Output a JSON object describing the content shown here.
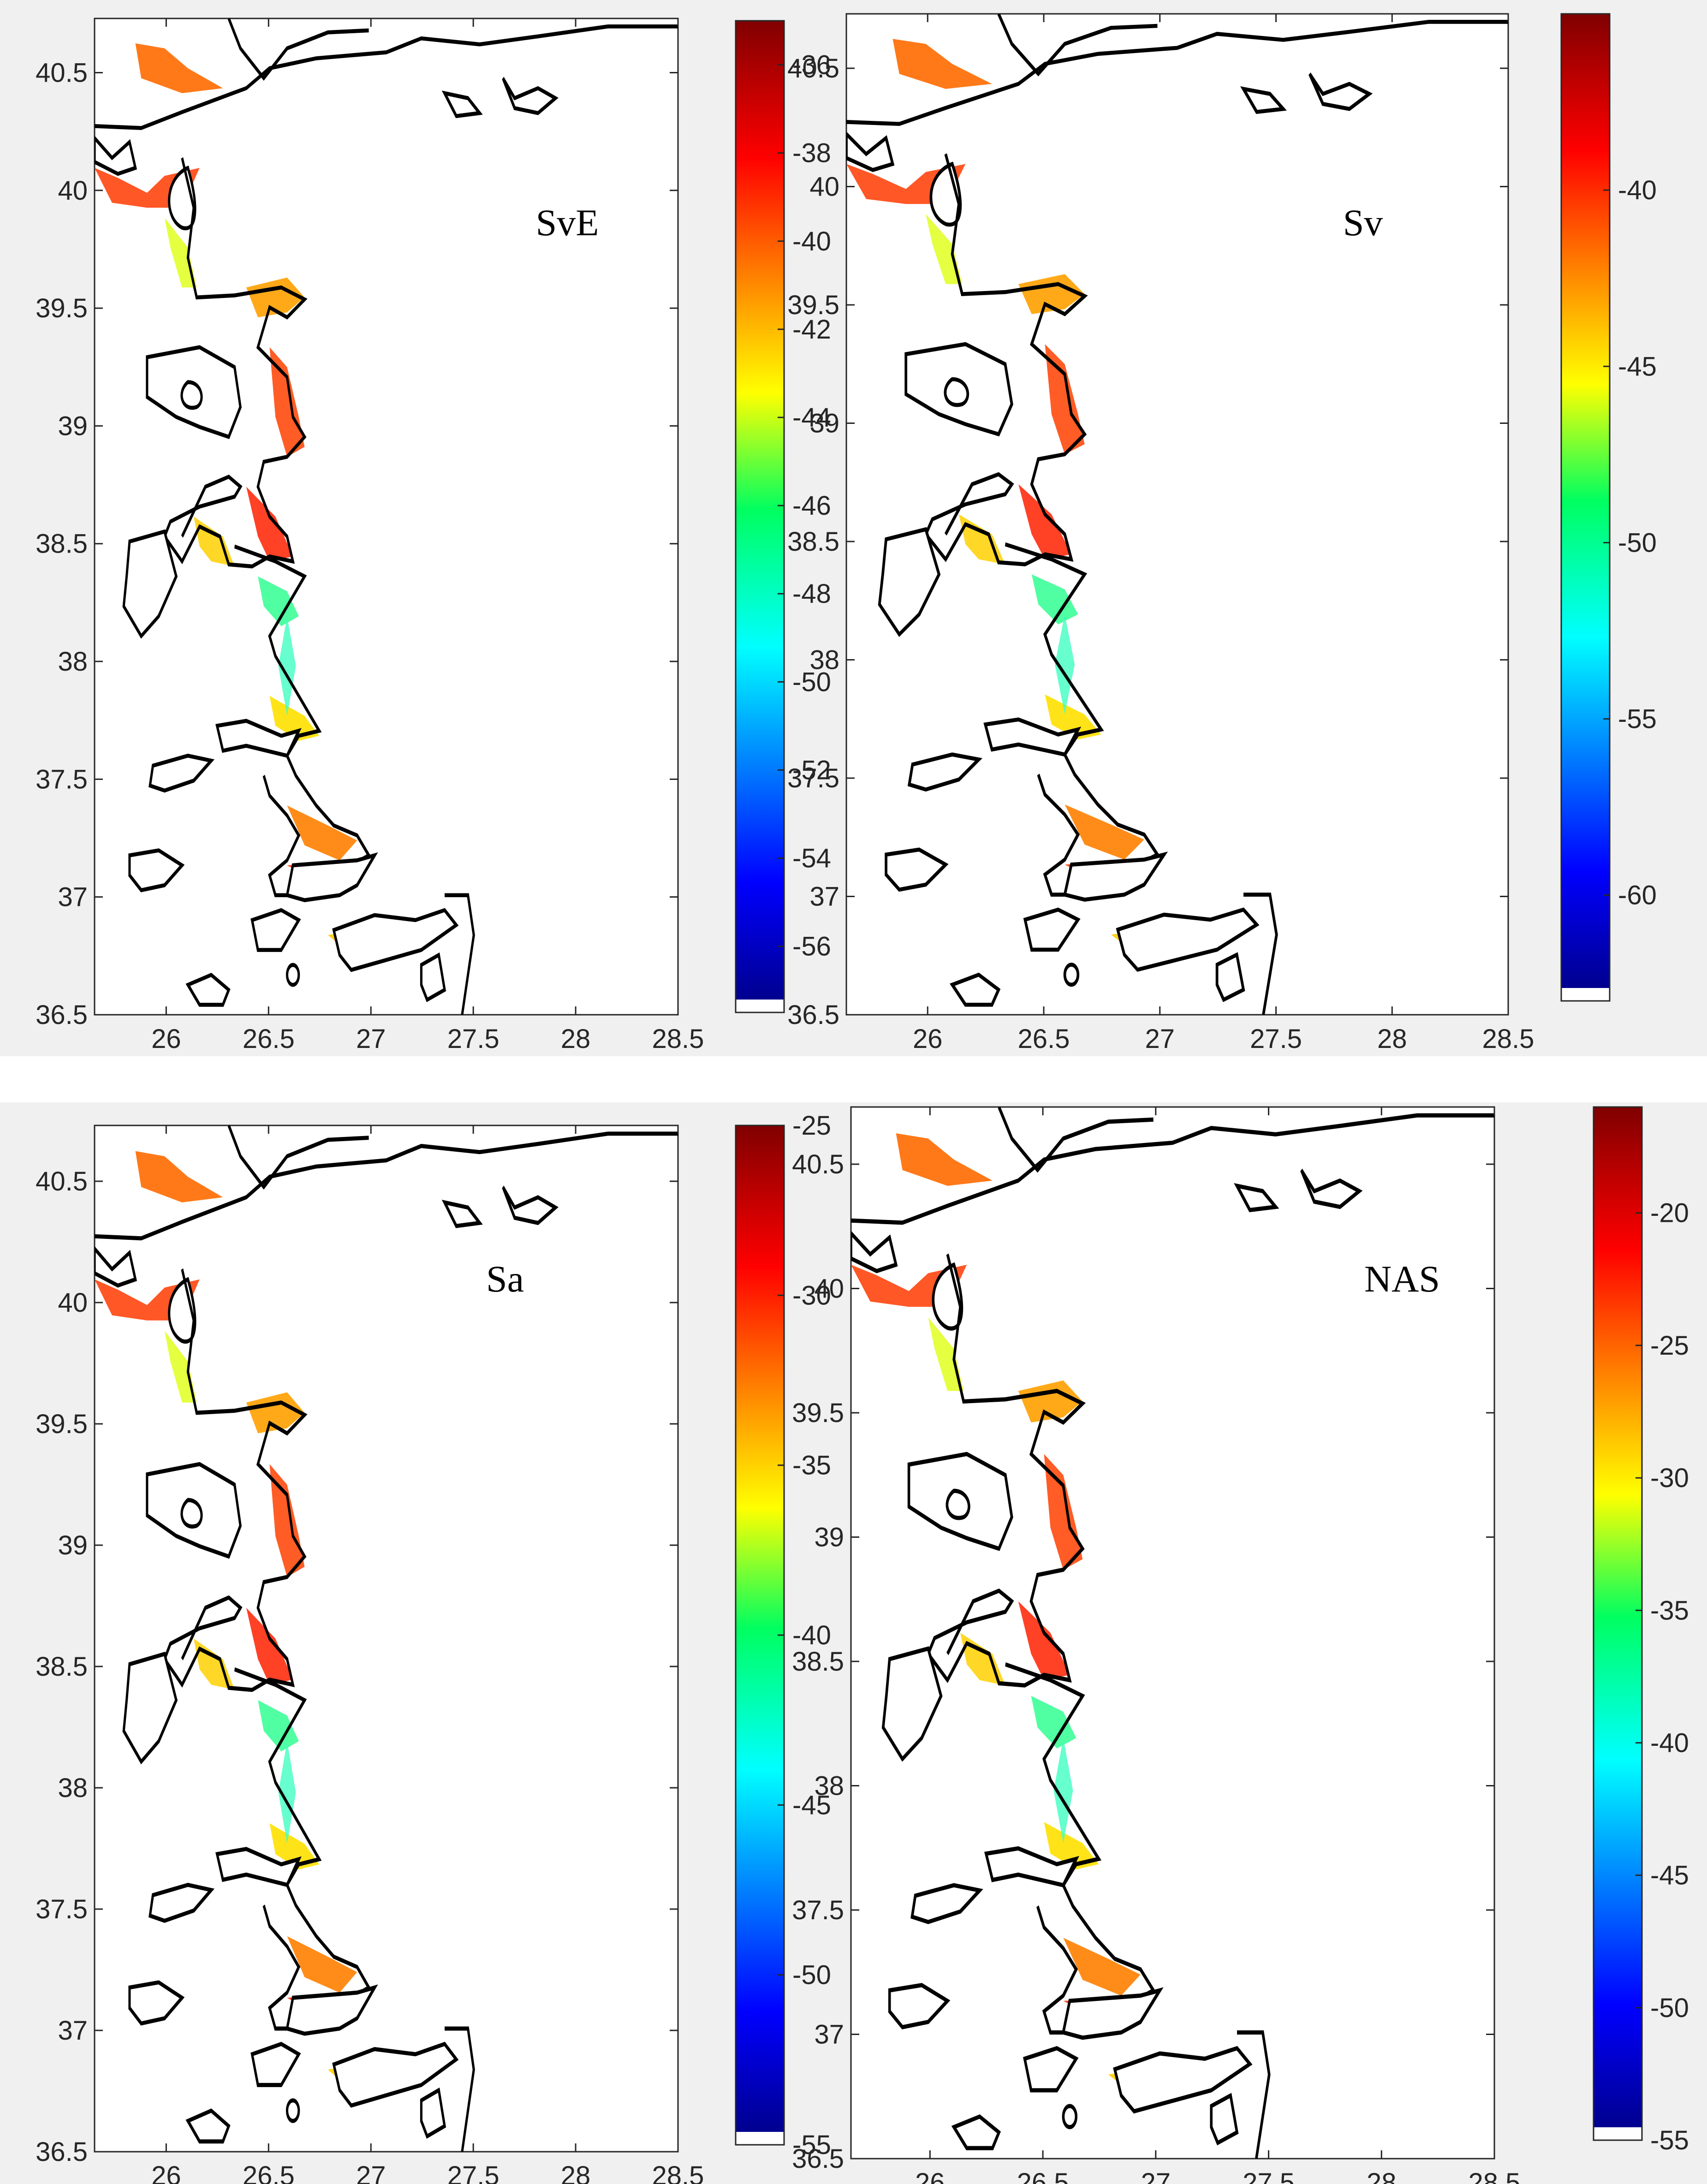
{
  "figure": {
    "panels": [
      {
        "id": "sve",
        "label": "SvE",
        "colorbar": {
          "min": -57.5,
          "max": -35,
          "ticks": [
            "-36",
            "-38",
            "-40",
            "-42",
            "-44",
            "-46",
            "-48",
            "-50",
            "-52",
            "-54",
            "-56"
          ],
          "tick_values": [
            -36,
            -38,
            -40,
            -42,
            -44,
            -46,
            -48,
            -50,
            -52,
            -54,
            -56
          ]
        }
      },
      {
        "id": "sv",
        "label": "Sv",
        "colorbar": {
          "min": -63,
          "max": -35,
          "ticks": [
            "-40",
            "-45",
            "-50",
            "-55",
            "-60"
          ],
          "tick_values": [
            -40,
            -45,
            -50,
            -55,
            -60
          ]
        }
      },
      {
        "id": "sa",
        "label": "Sa",
        "colorbar": {
          "min": -55,
          "max": -25,
          "ticks": [
            "-25",
            "-30",
            "-35",
            "-40",
            "-45",
            "-50",
            "-55"
          ],
          "tick_values": [
            -25,
            -30,
            -35,
            -40,
            -45,
            -50,
            -55
          ]
        }
      },
      {
        "id": "nas",
        "label": "NAS",
        "colorbar": {
          "min": -55,
          "max": -16,
          "ticks": [
            "-20",
            "-25",
            "-30",
            "-35",
            "-40",
            "-45",
            "-50",
            "-55"
          ],
          "tick_values": [
            -20,
            -25,
            -30,
            -35,
            -40,
            -45,
            -50,
            -55
          ]
        }
      }
    ],
    "axes": {
      "x_ticks": [
        "26",
        "26.5",
        "27",
        "27.5",
        "28",
        "28.5"
      ],
      "x_tick_values": [
        26,
        26.5,
        27,
        27.5,
        28,
        28.5
      ],
      "y_ticks": [
        "36.5",
        "37",
        "37.5",
        "38",
        "38.5",
        "39",
        "39.5",
        "40",
        "40.5"
      ],
      "y_tick_values": [
        36.5,
        37,
        37.5,
        38,
        38.5,
        39,
        39.5,
        40,
        40.5
      ],
      "xlim": [
        25.65,
        28.5
      ],
      "ylim": [
        36.5,
        40.73
      ]
    },
    "colormap": "jet",
    "colors": {
      "background": "#f0f0f0",
      "coastline": "#000000"
    }
  }
}
